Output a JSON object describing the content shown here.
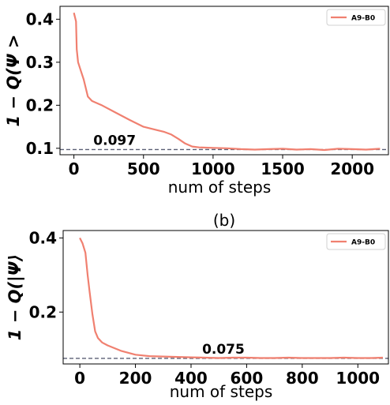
{
  "chart_data": [
    {
      "type": "line",
      "panel_label": "",
      "xlabel": "num of steps",
      "ylabel": "1 − Q(Ψ >",
      "xlim": [
        -100,
        2260
      ],
      "ylim": [
        0.085,
        0.43
      ],
      "xticks": [
        0,
        500,
        1000,
        1500,
        2000
      ],
      "yticks": [
        0.1,
        0.2,
        0.3,
        0.4
      ],
      "ytick_labels": [
        "0.1",
        "0.2",
        "0.3",
        "0.4"
      ],
      "legend": {
        "position": "top-right",
        "entries": [
          "A9-B0"
        ]
      },
      "series": [
        {
          "name": "A9-B0",
          "color": "#f08070",
          "x": [
            0,
            15,
            20,
            30,
            50,
            70,
            100,
            130,
            200,
            300,
            400,
            500,
            600,
            650,
            700,
            750,
            800,
            850,
            900,
            1000,
            1100,
            1200,
            1300,
            1400,
            1500,
            1600,
            1700,
            1800,
            1900,
            2000,
            2100,
            2200
          ],
          "y": [
            0.415,
            0.395,
            0.33,
            0.3,
            0.28,
            0.26,
            0.22,
            0.21,
            0.2,
            0.183,
            0.166,
            0.15,
            0.142,
            0.138,
            0.132,
            0.122,
            0.111,
            0.104,
            0.102,
            0.101,
            0.1,
            0.098,
            0.097,
            0.098,
            0.099,
            0.097,
            0.098,
            0.096,
            0.099,
            0.098,
            0.097,
            0.099
          ]
        }
      ],
      "reference_line": {
        "y": 0.097,
        "label": "0.097",
        "label_x": 140,
        "color": "#5a5f75",
        "style": "dashed"
      }
    },
    {
      "type": "line",
      "panel_label": "(b)",
      "xlabel": "num of steps",
      "ylabel": "1 − Q(|Ψ⟩",
      "xlim": [
        -60,
        1110
      ],
      "ylim": [
        0.06,
        0.42
      ],
      "xticks": [
        0,
        200,
        400,
        600,
        800,
        1000
      ],
      "yticks": [
        0.2,
        0.4
      ],
      "ytick_labels": [
        "0.2",
        "0.4"
      ],
      "legend": {
        "position": "top-right",
        "entries": [
          "A9-B0"
        ]
      },
      "series": [
        {
          "name": "A9-B0",
          "color": "#f08070",
          "x": [
            0,
            10,
            20,
            28,
            35,
            45,
            55,
            65,
            80,
            100,
            150,
            200,
            250,
            300,
            350,
            400,
            450,
            500,
            550,
            600,
            650,
            700,
            750,
            800,
            850,
            900,
            950,
            1000,
            1050,
            1090
          ],
          "y": [
            0.4,
            0.385,
            0.36,
            0.3,
            0.255,
            0.195,
            0.148,
            0.13,
            0.118,
            0.11,
            0.095,
            0.085,
            0.081,
            0.08,
            0.079,
            0.078,
            0.077,
            0.076,
            0.077,
            0.077,
            0.076,
            0.076,
            0.077,
            0.076,
            0.076,
            0.076,
            0.077,
            0.076,
            0.076,
            0.077
          ]
        }
      ],
      "reference_line": {
        "y": 0.075,
        "label": "0.075",
        "label_x": 440,
        "color": "#5a5f75",
        "style": "dashed"
      }
    }
  ]
}
